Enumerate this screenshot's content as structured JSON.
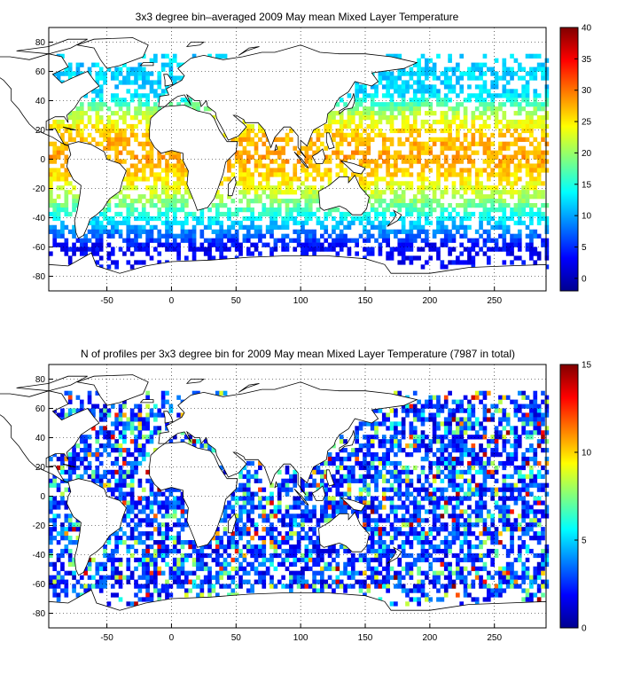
{
  "chart_data": [
    {
      "type": "heatmap",
      "title": "3x3 degree bin–averaged 2009 May mean Mixed Layer Temperature",
      "xlim": [
        -95,
        290
      ],
      "ylim": [
        -90,
        90
      ],
      "xticks": [
        -50,
        0,
        50,
        100,
        150,
        200,
        250
      ],
      "yticks": [
        80,
        60,
        40,
        20,
        0,
        -20,
        -40,
        -60,
        -80
      ],
      "grid": "dotted",
      "colormap": "jet",
      "colorbar": {
        "min": -2,
        "max": 40,
        "ticks": [
          40,
          35,
          30,
          25,
          20,
          15,
          10,
          5,
          0
        ]
      },
      "bin_size_deg": 3,
      "zonal_mean_values": [
        {
          "lat": 45,
          "value": 12
        },
        {
          "lat": 30,
          "value": 22
        },
        {
          "lat": 15,
          "value": 27
        },
        {
          "lat": 0,
          "value": 28
        },
        {
          "lat": -15,
          "value": 25
        },
        {
          "lat": -30,
          "value": 19
        },
        {
          "lat": -45,
          "value": 11
        },
        {
          "lat": -60,
          "value": 3
        }
      ]
    },
    {
      "type": "heatmap",
      "title": "N of profiles per 3x3 degree bin for 2009 May mean Mixed Layer Temperature  (7987 in total)",
      "xlim": [
        -95,
        290
      ],
      "ylim": [
        -90,
        90
      ],
      "xticks": [
        -50,
        0,
        50,
        100,
        150,
        200,
        250
      ],
      "yticks": [
        80,
        60,
        40,
        20,
        0,
        -20,
        -40,
        -60,
        -80
      ],
      "grid": "dotted",
      "colormap": "jet",
      "colorbar": {
        "min": 0,
        "max": 15,
        "ticks": [
          15,
          10,
          5,
          0
        ]
      },
      "bin_size_deg": 3,
      "total_profiles": 7987
    }
  ],
  "colors": {
    "jet_stops": [
      "#00008f",
      "#0000ff",
      "#00ffff",
      "#ffff00",
      "#ff0000",
      "#800000"
    ],
    "land_outline": "#000000",
    "background": "#ffffff"
  }
}
